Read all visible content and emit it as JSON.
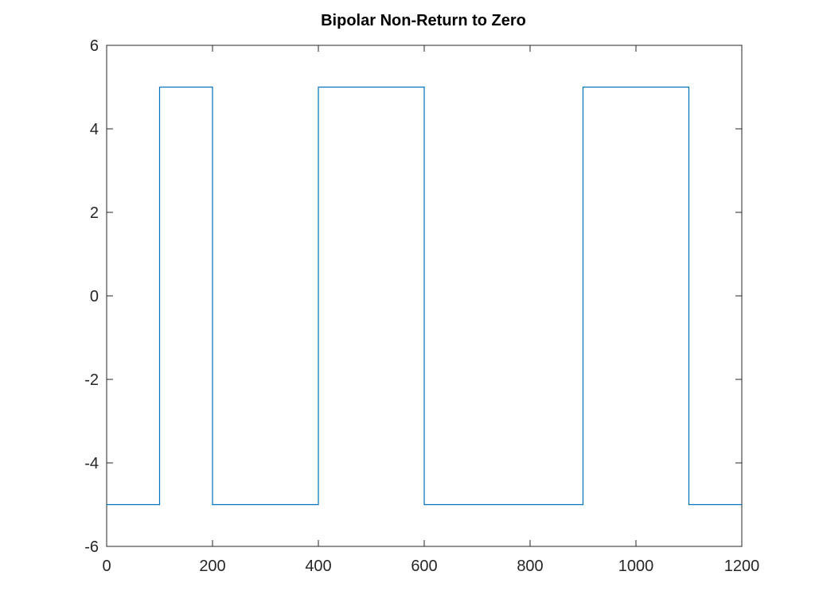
{
  "chart_data": {
    "type": "line",
    "title": "Bipolar Non-Return to Zero",
    "xlabel": "",
    "ylabel": "",
    "xlim": [
      0,
      1200
    ],
    "ylim": [
      -6,
      6
    ],
    "xticks": [
      "0",
      "200",
      "400",
      "600",
      "800",
      "1000",
      "1200"
    ],
    "yticks": [
      "6",
      "4",
      "2",
      "0",
      "-2",
      "-4",
      "-6"
    ],
    "grid": false,
    "line_color": "#0072BD",
    "series": [
      {
        "x": [
          0,
          100,
          100,
          200,
          200,
          400,
          400,
          600,
          600,
          900,
          900,
          1100,
          1100,
          1200
        ],
        "y": [
          -5,
          -5,
          5,
          5,
          -5,
          -5,
          5,
          5,
          -5,
          -5,
          5,
          5,
          -5,
          -5
        ]
      }
    ]
  }
}
